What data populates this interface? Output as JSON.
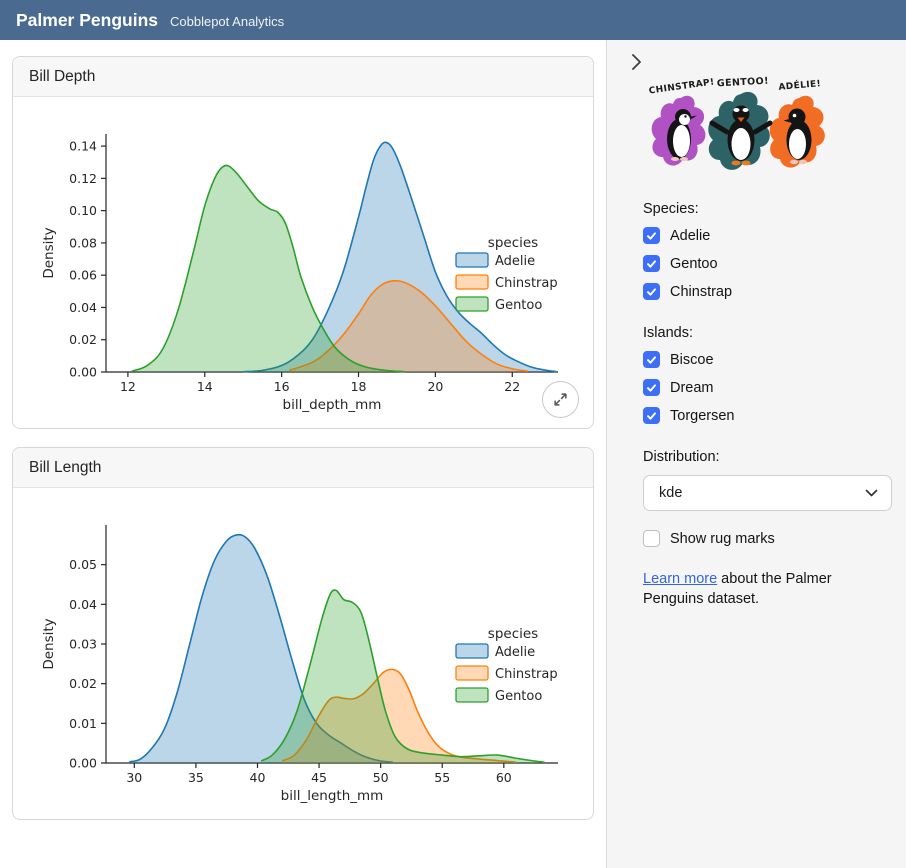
{
  "header": {
    "title": "Palmer Penguins",
    "subtitle": "Cobblepot Analytics"
  },
  "cards": [
    {
      "title": "Bill Depth"
    },
    {
      "title": "Bill Length"
    }
  ],
  "sidebar": {
    "artwork_labels": [
      "CHINSTRAP!",
      "GENTOO!",
      "ADÉLIE!"
    ],
    "species": {
      "label": "Species:",
      "options": [
        {
          "label": "Adelie",
          "checked": true
        },
        {
          "label": "Gentoo",
          "checked": true
        },
        {
          "label": "Chinstrap",
          "checked": true
        }
      ]
    },
    "islands": {
      "label": "Islands:",
      "options": [
        {
          "label": "Biscoe",
          "checked": true
        },
        {
          "label": "Dream",
          "checked": true
        },
        {
          "label": "Torgersen",
          "checked": true
        }
      ]
    },
    "distribution": {
      "label": "Distribution:",
      "value": "kde"
    },
    "rug": {
      "label": "Show rug marks",
      "checked": false
    },
    "footer": {
      "link_label": "Learn more",
      "rest": " about the Palmer Penguins dataset."
    }
  },
  "colors": {
    "header_bg": "#4a6a90",
    "checkbox_accent": "#3d6ef7",
    "link": "#3464e0",
    "species": {
      "Adelie": "#1f77b4",
      "Chinstrap": "#ff7f0e",
      "Gentoo": "#2ca02c"
    }
  },
  "chart_data": [
    {
      "type": "area",
      "title": "Bill Depth KDE by species",
      "xlabel": "bill_depth_mm",
      "ylabel": "Density",
      "xlim": [
        11.43,
        23.19
      ],
      "ylim": [
        0,
        0.1475
      ],
      "xticks": [
        12,
        14,
        16,
        18,
        20,
        22
      ],
      "yticks": [
        0,
        0.02,
        0.04,
        0.06,
        0.08,
        0.1,
        0.12,
        0.14
      ],
      "ytick_labels": [
        "0.00",
        "0.02",
        "0.04",
        "0.06",
        "0.08",
        "0.10",
        "0.12",
        "0.14"
      ],
      "grid": false,
      "legend_title": "species",
      "legend_entries": [
        "Adelie",
        "Chinstrap",
        "Gentoo"
      ],
      "legend_position": "center right",
      "series": [
        {
          "name": "Adelie",
          "color": "#1f77b4",
          "points": [
            [
              15.0,
              0.0002
            ],
            [
              15.5,
              0.001
            ],
            [
              16.0,
              0.004
            ],
            [
              16.4,
              0.01
            ],
            [
              16.8,
              0.02
            ],
            [
              17.2,
              0.038
            ],
            [
              17.6,
              0.062
            ],
            [
              18.0,
              0.096
            ],
            [
              18.2,
              0.115
            ],
            [
              18.4,
              0.132
            ],
            [
              18.6,
              0.141
            ],
            [
              18.75,
              0.142
            ],
            [
              18.9,
              0.138
            ],
            [
              19.1,
              0.127
            ],
            [
              19.4,
              0.106
            ],
            [
              19.7,
              0.084
            ],
            [
              20.0,
              0.062
            ],
            [
              20.3,
              0.047
            ],
            [
              20.6,
              0.037
            ],
            [
              20.9,
              0.03
            ],
            [
              21.2,
              0.024
            ],
            [
              21.5,
              0.017
            ],
            [
              21.8,
              0.011
            ],
            [
              22.1,
              0.007
            ],
            [
              22.5,
              0.003
            ],
            [
              22.9,
              0.001
            ],
            [
              23.15,
              0.0002
            ]
          ]
        },
        {
          "name": "Chinstrap",
          "color": "#ff7f0e",
          "points": [
            [
              16.2,
              0.001
            ],
            [
              16.8,
              0.006
            ],
            [
              17.2,
              0.013
            ],
            [
              17.6,
              0.023
            ],
            [
              18.0,
              0.036
            ],
            [
              18.3,
              0.047
            ],
            [
              18.6,
              0.054
            ],
            [
              18.9,
              0.0565
            ],
            [
              19.2,
              0.0555
            ],
            [
              19.6,
              0.05
            ],
            [
              20.0,
              0.041
            ],
            [
              20.4,
              0.03
            ],
            [
              20.8,
              0.019
            ],
            [
              21.2,
              0.011
            ],
            [
              21.6,
              0.005
            ],
            [
              22.0,
              0.002
            ],
            [
              22.4,
              0.0005
            ]
          ]
        },
        {
          "name": "Gentoo",
          "color": "#2ca02c",
          "points": [
            [
              12.1,
              0.0005
            ],
            [
              12.5,
              0.004
            ],
            [
              12.9,
              0.014
            ],
            [
              13.3,
              0.038
            ],
            [
              13.7,
              0.074
            ],
            [
              14.0,
              0.103
            ],
            [
              14.3,
              0.122
            ],
            [
              14.55,
              0.128
            ],
            [
              14.8,
              0.124
            ],
            [
              15.1,
              0.115
            ],
            [
              15.4,
              0.106
            ],
            [
              15.7,
              0.101
            ],
            [
              15.9,
              0.099
            ],
            [
              16.1,
              0.092
            ],
            [
              16.3,
              0.077
            ],
            [
              16.5,
              0.059
            ],
            [
              16.8,
              0.04
            ],
            [
              17.1,
              0.026
            ],
            [
              17.4,
              0.015
            ],
            [
              17.8,
              0.007
            ],
            [
              18.2,
              0.003
            ],
            [
              18.7,
              0.001
            ],
            [
              19.2,
              0.0002
            ]
          ]
        }
      ]
    },
    {
      "type": "area",
      "title": "Bill Length KDE by species",
      "xlabel": "bill_length_mm",
      "ylabel": "Density",
      "xlim": [
        27.7,
        64.4
      ],
      "ylim": [
        0,
        0.06
      ],
      "xticks": [
        30,
        35,
        40,
        45,
        50,
        55,
        60
      ],
      "yticks": [
        0,
        0.01,
        0.02,
        0.03,
        0.04,
        0.05
      ],
      "ytick_labels": [
        "0.00",
        "0.01",
        "0.02",
        "0.03",
        "0.04",
        "0.05"
      ],
      "grid": false,
      "legend_title": "species",
      "legend_entries": [
        "Adelie",
        "Chinstrap",
        "Gentoo"
      ],
      "legend_position": "center right",
      "series": [
        {
          "name": "Adelie",
          "color": "#1f77b4",
          "points": [
            [
              29.6,
              0.0003
            ],
            [
              30.5,
              0.001
            ],
            [
              31.5,
              0.004
            ],
            [
              32.5,
              0.009
            ],
            [
              33.5,
              0.018
            ],
            [
              34.5,
              0.03
            ],
            [
              35.5,
              0.042
            ],
            [
              36.5,
              0.051
            ],
            [
              37.5,
              0.056
            ],
            [
              38.3,
              0.0575
            ],
            [
              39.0,
              0.057
            ],
            [
              39.8,
              0.054
            ],
            [
              40.8,
              0.047
            ],
            [
              41.8,
              0.037
            ],
            [
              42.8,
              0.026
            ],
            [
              43.8,
              0.016
            ],
            [
              44.8,
              0.01
            ],
            [
              45.8,
              0.007
            ],
            [
              46.8,
              0.005
            ],
            [
              47.8,
              0.003
            ],
            [
              48.8,
              0.0015
            ],
            [
              50.0,
              0.0005
            ],
            [
              51.0,
              0.0002
            ]
          ]
        },
        {
          "name": "Chinstrap",
          "color": "#ff7f0e",
          "points": [
            [
              42.0,
              0.0005
            ],
            [
              43.0,
              0.002
            ],
            [
              44.0,
              0.006
            ],
            [
              45.0,
              0.012
            ],
            [
              45.8,
              0.0158
            ],
            [
              46.4,
              0.0166
            ],
            [
              47.0,
              0.0163
            ],
            [
              47.8,
              0.0162
            ],
            [
              48.6,
              0.0175
            ],
            [
              49.4,
              0.02
            ],
            [
              50.2,
              0.0228
            ],
            [
              50.9,
              0.0236
            ],
            [
              51.6,
              0.0225
            ],
            [
              52.3,
              0.0185
            ],
            [
              53.0,
              0.013
            ],
            [
              53.8,
              0.008
            ],
            [
              54.6,
              0.0045
            ],
            [
              55.5,
              0.0025
            ],
            [
              56.5,
              0.0015
            ],
            [
              58.0,
              0.001
            ],
            [
              59.5,
              0.0006
            ],
            [
              61.0,
              0.0002
            ]
          ]
        },
        {
          "name": "Gentoo",
          "color": "#2ca02c",
          "points": [
            [
              40.3,
              0.0005
            ],
            [
              41.2,
              0.002
            ],
            [
              42.2,
              0.006
            ],
            [
              43.2,
              0.013
            ],
            [
              44.2,
              0.024
            ],
            [
              45.2,
              0.036
            ],
            [
              45.9,
              0.0425
            ],
            [
              46.4,
              0.0435
            ],
            [
              47.0,
              0.0412
            ],
            [
              47.7,
              0.0405
            ],
            [
              48.4,
              0.038
            ],
            [
              49.0,
              0.0315
            ],
            [
              49.7,
              0.022
            ],
            [
              50.4,
              0.013
            ],
            [
              51.2,
              0.0065
            ],
            [
              52.2,
              0.0035
            ],
            [
              53.5,
              0.0025
            ],
            [
              55.0,
              0.002
            ],
            [
              56.5,
              0.0016
            ],
            [
              58.0,
              0.0018
            ],
            [
              59.5,
              0.002
            ],
            [
              61.0,
              0.0012
            ],
            [
              62.5,
              0.0005
            ],
            [
              63.3,
              0.0002
            ]
          ]
        }
      ]
    }
  ]
}
